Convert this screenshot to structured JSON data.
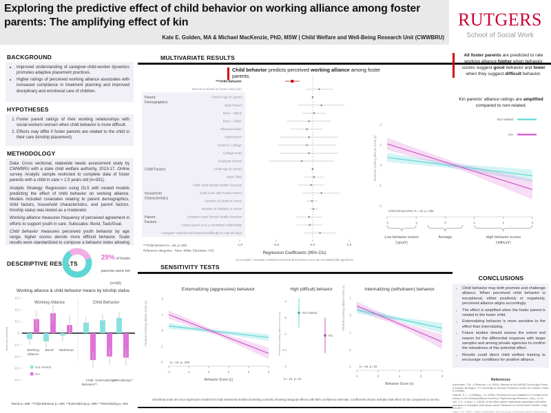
{
  "header": {
    "title": "Exploring the predictive effect of child behavior on working alliance among foster parents: The amplifying effect of kin",
    "authors": "Kate E. Golden, MA & Michael MacKenzie, PhD, MSW | Child Welfare and Well-Being Research Unit (CWWBRU)",
    "logo_name": "RUTGERS",
    "logo_subtitle": "School of Social Work"
  },
  "colors": {
    "not_related": "#5fd6d4",
    "not_related_fill": "#8ce4e1",
    "kin": "#cf54c6",
    "kin_fill": "#e383da",
    "accent_red": "#d40000",
    "rutgers_red": "#cc0033",
    "box_bg": "#f1f0f7"
  },
  "left": {
    "background": {
      "heading": "BACKGROUND",
      "bullets": [
        "Improved understanding of caregiver-child-worker dynamics promotes adaptive placement practices.",
        "Higher ratings of perceived working alliance associates with increased compliance in treatment planning and improved disciplinary and emotional care of children."
      ]
    },
    "hypotheses": {
      "heading": "HYPOTHESES",
      "items": [
        "Foster parent ratings of their working relationships with social workers worsen when child behavior is more difficult.",
        "Effects may differ if foster parents are related to the child in their care (kinship placement)."
      ]
    },
    "methodology": {
      "heading": "METHODOLOGY",
      "paragraphs": [
        [
          {
            "t": "Data: Cross sectional, statewide needs assessment study by CWWBRU with a state child welfare authority, 2013-17. Online survey. Analytic sample restricted to complete data of foster parents with a child in care > 1.5 years old (n=331)."
          }
        ],
        [
          {
            "t": "Analytic Strategy: Regression using OLS with nested models predicting the effect of child behavior on working alliance. Models included covariates relating to parent demographics, child factors, household characteristics, and parent factors. Kinship status was tested as a moderator."
          }
        ],
        [
          {
            "t": "Working alliance",
            "i": true
          },
          {
            "t": " measures frequency of perceived agreement in efforts to support youth in care. Subscales: Bond, Task/Goal."
          }
        ],
        [
          {
            "t": "Child behavior",
            "i": true
          },
          {
            "t": " measures perceived youth behavior by age range, higher scores denote more difficult behavior. Scale results were standardized to compose a behavior index allowing for cross age-group inclusion (youth ages 1.5 – 17). Subscales: Internalizing & Externalizing."
          }
        ]
      ]
    },
    "descriptive": {
      "heading": "DESCRIPTIVE RESULTS",
      "stat": "29%",
      "stat_text": " of foster parents were kin (n=96)",
      "kin_pct": 29
    }
  },
  "middle": {
    "multivariate_heading": "MULTIVARIATE RESULTS",
    "sensitivity_heading": "SENSITIVITY TESTS",
    "headline": [
      {
        "t": "Child behavior",
        "b": true
      },
      {
        "t": " predicts perceived "
      },
      {
        "t": "working alliance",
        "b": true
      },
      {
        "t": " among foster parents."
      }
    ]
  },
  "right": {
    "box1": [
      {
        "t": "All foster parents",
        "b": true
      },
      {
        "t": " are predicted to rate working alliance "
      },
      {
        "t": "higher",
        "b": true
      },
      {
        "t": " when behavior scores suggest "
      },
      {
        "t": "good",
        "b": true
      },
      {
        "t": " behavior and "
      },
      {
        "t": "lower",
        "b": true
      },
      {
        "t": " when they suggest "
      },
      {
        "t": "difficult",
        "b": true
      },
      {
        "t": " behavior."
      }
    ],
    "box2": [
      {
        "t": "Kin parents' alliance ratings are "
      },
      {
        "t": "amplified",
        "b": true
      },
      {
        "t": " compared to non-related."
      }
    ]
  },
  "conclusions": {
    "heading": "CONCLUSIONS",
    "bullets": [
      "Child behavior may both promote and challenge alliance. When perceived child behavior is exceptional, either positively or negatively, perceived alliance aligns accordingly.",
      "The effect is amplified when the foster parent is related to the foster child.",
      "Externalizing behavior is more sensitive to the effect than internalizing.",
      "Future studies should assess the extent and reason for the differential response with larger samples and among private agencies to confirm the robustness of this potential effect.",
      "Results could direct child welfare training to encourage conditions for positive alliance."
    ]
  },
  "references": {
    "heading": "References",
    "items": [
      "Achenbach, T.M., & Rescorla, L.A. (2001). Manual for the ASEBA School-Age Forms & Profiles. Burlington, VT: University of Vermont, Research Center for Children, Youth, & Families.",
      "Hatcher, R. L., & Gillaspy, J. A. (2006). Development and validation of a revised short version of the Working Alliance Inventory. Psychotherapy Research, 16(1), 12-25.",
      "Lee, C.D., & Ayon, C. (2004). Is the client-worker relationship associated with better outcomes in mandated child abuse cases? Research on Social Work Practice, 14(5), 351-357.",
      "Littell, J.H. (2001). Client participation and outcomes of intensive family preservation services. Social Work Research, 25(2), 103-113."
    ]
  },
  "chart_data": {
    "means_bar": {
      "type": "bar",
      "title": "Working alliance & child behavior means by kinship status",
      "ylabel": "Mean (standardized)",
      "yticks": [
        0.3,
        0.2,
        0.1,
        0,
        -0.1,
        -0.2,
        -0.3,
        -0.4
      ],
      "group_labels": [
        "Working Alliance",
        "Child Behavior"
      ],
      "categories": [
        [
          "Working",
          "alliance"
        ],
        [
          "Bond*"
        ],
        [
          "Task/Goal"
        ],
        [
          "Child",
          "Behavior**"
        ],
        [
          "Externalizing**"
        ],
        [
          "Internalizing**"
        ]
      ],
      "series": [
        {
          "name": "Not related",
          "values": [
            -0.05,
            -0.07,
            -0.02,
            0.09,
            0.11,
            0.13
          ],
          "errors": [
            0.05,
            0.05,
            0.05,
            0.05,
            0.05,
            0.05
          ]
        },
        {
          "name": "Kin",
          "values": [
            0.12,
            0.17,
            0.07,
            -0.23,
            -0.2,
            -0.21
          ],
          "errors": [
            0.08,
            0.07,
            0.08,
            0.07,
            0.07,
            0.07
          ]
        }
      ],
      "footnote": "*Bond p=.055; **Child Behavior p=.006; **Externalizing p=.009; **Internalizing p=.004"
    },
    "forest": {
      "type": "forest",
      "xlabel": "Regression Coefficients (95% CIs)",
      "xticks": [
        -1,
        -0.5,
        0,
        0.5
      ],
      "xtick_labels": [
        "-1.0",
        "-0.5",
        "0.0",
        "0.5"
      ],
      "note": "OLS results: Covariate confidence intervals that intersect zero are not statistically significant",
      "footnotes": [
        "***Child behavior b=-.28, p<.000.",
        "Reference categories - Race: White; Education: <HS"
      ],
      "groups": [
        {
          "label": [
            "Parent",
            "Demographics"
          ],
          "start": 2
        },
        {
          "label": [
            "Child Factors"
          ],
          "start": 11
        },
        {
          "label": [
            "Household",
            "Characteristics"
          ],
          "start": 14
        },
        {
          "label": [
            "Parent",
            "Factors"
          ],
          "start": 17
        }
      ],
      "rows": [
        {
          "label": "***Child Behavior",
          "est": -0.28,
          "lo": -0.38,
          "hi": -0.18,
          "red": true
        },
        {
          "label": "Parent is related to foster child (kin)",
          "est": 0.09,
          "lo": -0.1,
          "hi": 0.28
        },
        {
          "label": "Parent Age (in years)",
          "est": 0.0,
          "lo": -0.01,
          "hi": 0.01
        },
        {
          "label": "Male Parent",
          "est": 0.12,
          "lo": -0.2,
          "hi": 0.44
        },
        {
          "label": "Race – Black",
          "est": 0.02,
          "lo": -0.14,
          "hi": 0.18
        },
        {
          "label": "Race – Other",
          "est": -0.05,
          "lo": -0.35,
          "hi": 0.25
        },
        {
          "label": "Hispanic/Latino",
          "est": -0.08,
          "lo": -0.3,
          "hi": 0.14
        },
        {
          "label": "High/Votech",
          "est": -0.05,
          "lo": -0.45,
          "hi": 0.35
        },
        {
          "label": "Some/Jr. College",
          "est": -0.08,
          "lo": -0.48,
          "hi": 0.32
        },
        {
          "label": "College Grad",
          "est": -0.05,
          "lo": -0.45,
          "hi": 0.35
        },
        {
          "label": "Graduate School",
          "est": -0.15,
          "lo": -0.6,
          "hi": 0.3
        },
        {
          "label": "Child Age (in years)",
          "est": 0.0,
          "lo": -0.02,
          "hi": 0.02
        },
        {
          "label": "Male Child",
          "est": 0.02,
          "lo": -0.12,
          "hi": 0.16
        },
        {
          "label": "Child Used Mental Health Services",
          "est": -0.02,
          "lo": -0.2,
          "hi": 0.16
        },
        {
          "label": "Child Lives with Foster Parent",
          "est": 0.12,
          "lo": -0.14,
          "hi": 0.38
        },
        {
          "label": "Number of Adults in Home",
          "est": -0.01,
          "lo": -0.09,
          "hi": 0.07
        },
        {
          "label": "Number of Children in Home",
          "est": 0.01,
          "lo": -0.05,
          "hi": 0.07
        },
        {
          "label": "Caregiver used Mental Health Services",
          "est": -0.05,
          "lo": -0.23,
          "hi": 0.13
        },
        {
          "label": "Foster parent is in a committed relationship",
          "est": -0.04,
          "lo": -0.22,
          "hi": 0.14
        },
        {
          "label": "Caregiver experienced Financial Difficulty In Last 30 days",
          "est": 0.1,
          "lo": -0.12,
          "hi": 0.32
        }
      ]
    },
    "interaction": {
      "type": "line",
      "ylabel": "Predicted working alliance Score (z)",
      "yticks": [
        2,
        1,
        0,
        -1,
        -2
      ],
      "xticks": [
        -2,
        -1,
        0,
        1,
        2,
        3
      ],
      "legend": [
        "Not related",
        "Kin"
      ],
      "annotation": "Child Behavior#Kin b=-.29, p=.008",
      "series": [
        {
          "name": "Not related",
          "x": [
            -2,
            3
          ],
          "y": [
            0.38,
            -0.52
          ],
          "w": [
            0.22,
            0.12,
            0.3
          ]
        },
        {
          "name": "Kin",
          "x": [
            -2,
            3
          ],
          "y": [
            1.05,
            -1.2
          ],
          "w": [
            0.3,
            0.14,
            0.48
          ]
        }
      ],
      "xgroups": [
        {
          "from": -2,
          "to": -1,
          "label": [
            "Low behavior scores",
            "('good')"
          ]
        },
        {
          "from": -0.6,
          "to": 0.6,
          "label": [
            "Average"
          ]
        },
        {
          "from": 1,
          "to": 3,
          "label": [
            "High behavior scores",
            "('difficult')"
          ]
        }
      ]
    },
    "sensitivity": {
      "caption": "Sensitivity tests are OLS regression results from fully interacted models (including controls) showing marginal effects with 95% confidence intervals. Coefficients shown indicate total effect for kin compared to non-kin.",
      "plots": [
        {
          "title": "Externalizing (aggressive) behavior",
          "type": "line",
          "ylabel": "Predicted working alliance score (z)",
          "xlabel": "Behavior Score (z)",
          "yticks": [
            2,
            1,
            0,
            -1,
            -2
          ],
          "xticks": [
            -2,
            -1,
            0,
            1,
            2,
            3
          ],
          "annotation": "b=-.18, p=.009",
          "series": [
            {
              "name": "Not related",
              "x": [
                -2,
                3
              ],
              "y": [
                0.28,
                -0.45
              ],
              "w": [
                0.18,
                0.1,
                0.22
              ]
            },
            {
              "name": "Kin",
              "x": [
                -2,
                3
              ],
              "y": [
                1.0,
                -1.45
              ],
              "w": [
                0.26,
                0.13,
                0.36
              ]
            }
          ]
        },
        {
          "title": "High (difficult) behavior",
          "type": "point",
          "ylabel": "Predicted working alliance score (z)",
          "yticks": [
            0,
            -0.5,
            -1,
            -1.5,
            -2
          ],
          "ytick_labels": [
            "0",
            "-.5",
            "-1",
            "-1.5",
            "-2"
          ],
          "annotation": "b=-.26, p=.04",
          "points": [
            {
              "label": "Not related",
              "value": -0.35,
              "lo": -0.8,
              "hi": 0.1
            },
            {
              "label": "Kin",
              "value": -1.05,
              "lo": -1.6,
              "hi": -0.5
            }
          ]
        },
        {
          "title": "Internalizing (withdrawn) behavior",
          "type": "line",
          "ylabel": "Predicted working alliance score (z)",
          "xlabel": "Behavior Score (z)",
          "yticks": [
            1,
            0,
            -1,
            -2,
            -3
          ],
          "xticks": [
            -1,
            0,
            1,
            2,
            3
          ],
          "annotation": "b=-.05, p=.09",
          "series": [
            {
              "name": "Not related",
              "x": [
                -1,
                3
              ],
              "y": [
                0.3,
                -0.75
              ],
              "w": [
                0.2,
                0.12,
                0.3
              ]
            },
            {
              "name": "Kin",
              "x": [
                -1,
                3
              ],
              "y": [
                0.55,
                -1.55
              ],
              "w": [
                0.26,
                0.14,
                0.42
              ]
            }
          ]
        }
      ]
    }
  }
}
